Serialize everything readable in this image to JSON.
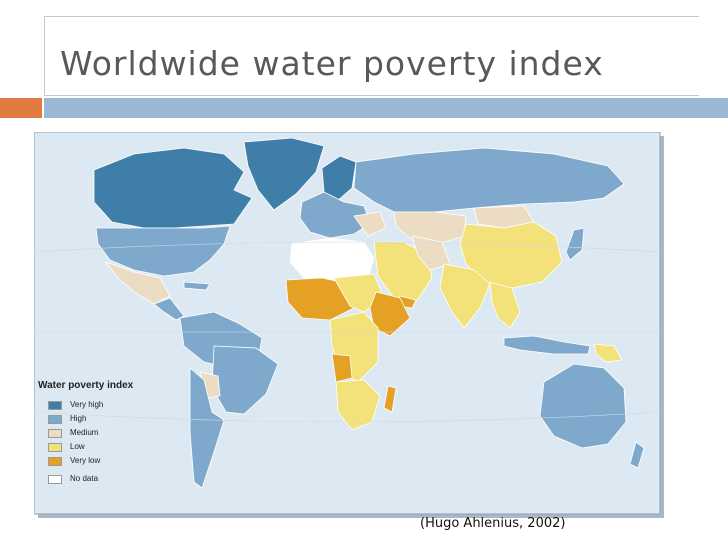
{
  "slide": {
    "title": "Worldwide water poverty index",
    "credit": "(Hugo Ahlenius, 2002)"
  },
  "legend": {
    "title": "Water poverty index",
    "items": [
      {
        "label": "Very high",
        "color": "#3f7ea8"
      },
      {
        "label": "High",
        "color": "#7fa9cc"
      },
      {
        "label": "Medium",
        "color": "#ecdcc3"
      },
      {
        "label": "Low",
        "color": "#f3e27a"
      },
      {
        "label": "Very low",
        "color": "#e4a123"
      },
      {
        "label": "No data",
        "color": "#ffffff"
      }
    ]
  },
  "map": {
    "ocean_color": "#dde9f2",
    "border_color": "#ffffff"
  }
}
